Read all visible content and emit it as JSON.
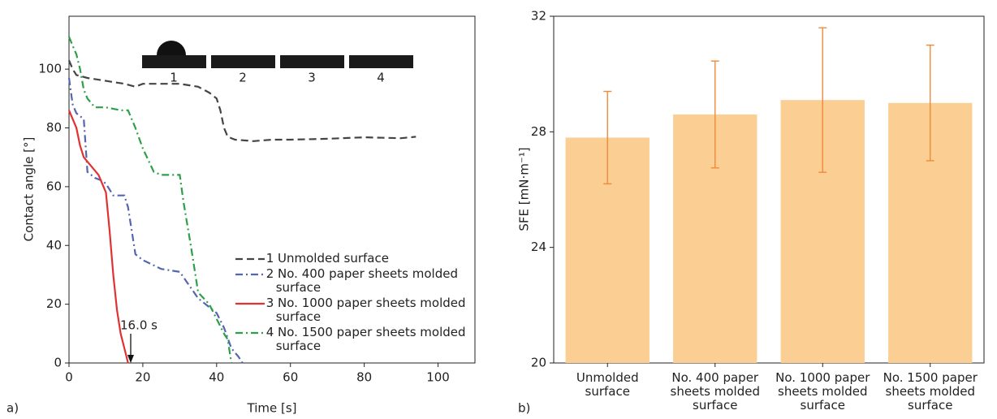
{
  "chart_data": [
    {
      "type": "line",
      "panel_label": "a)",
      "x_label": "Time [s]",
      "y_label": "Contact angle [°]",
      "xlim": [
        0,
        110
      ],
      "xticks": [
        0,
        20,
        40,
        60,
        80,
        100
      ],
      "ylim": [
        0,
        118
      ],
      "yticks": [
        0,
        20,
        40,
        60,
        80,
        100
      ],
      "legend": "lower right",
      "inset_labels": [
        "1",
        "2",
        "3",
        "4"
      ],
      "annotation": "16.0 s",
      "series": [
        {
          "name": "1 Unmolded surface",
          "color": "#444444",
          "dash": "dashed",
          "x": [
            0,
            1,
            2,
            5,
            10,
            15,
            18,
            20,
            25,
            30,
            35,
            38,
            40,
            41,
            42,
            43,
            45,
            50,
            55,
            60,
            70,
            80,
            90,
            94
          ],
          "values": [
            103,
            100,
            98,
            97,
            96,
            95,
            94,
            95,
            95,
            95,
            94,
            92,
            90,
            86,
            80,
            77,
            76,
            75.5,
            76,
            76,
            76.3,
            76.8,
            76.5,
            77
          ]
        },
        {
          "name": "2 No. 400 paper sheets molded surface",
          "color": "#5566b0",
          "dash": "dashdot",
          "x": [
            0,
            1,
            2,
            3,
            4,
            5,
            7,
            9,
            10,
            12,
            15,
            16,
            18,
            20,
            25,
            30,
            35,
            40,
            42,
            44,
            46,
            47
          ],
          "values": [
            97,
            88,
            85,
            84,
            83,
            65,
            63,
            62,
            61,
            57,
            57,
            53,
            37,
            35,
            32,
            31,
            22,
            17,
            12,
            5,
            2,
            0
          ]
        },
        {
          "name": "3 No. 1000 paper sheets molded surface",
          "color": "#e03232",
          "dash": "solid",
          "x": [
            0,
            2,
            3,
            4,
            6,
            8,
            10,
            11,
            12,
            13,
            14,
            15,
            16
          ],
          "values": [
            86,
            80,
            74,
            70,
            67,
            64,
            58,
            45,
            30,
            18,
            10,
            5,
            0
          ]
        },
        {
          "name": "4 No. 1500 paper sheets molded surface",
          "color": "#2ca048",
          "dash": "dashdot",
          "x": [
            0,
            1,
            2,
            3,
            4,
            5,
            7,
            10,
            14,
            16,
            18,
            20,
            23,
            25,
            30,
            31,
            33,
            35,
            38,
            40,
            42,
            43,
            44
          ],
          "values": [
            111,
            108,
            105,
            100,
            93,
            90,
            87,
            87,
            86,
            86,
            80,
            73,
            65,
            64,
            64,
            55,
            40,
            24,
            20,
            15,
            10,
            8,
            0
          ]
        }
      ]
    },
    {
      "type": "bar",
      "panel_label": "b)",
      "y_label": "SFE [mN·m⁻¹]",
      "categories": [
        "Unmolded surface",
        "No. 400 paper sheets molded surface",
        "No. 1000 paper sheets molded surface",
        "No. 1500 paper sheets molded surface"
      ],
      "values": [
        27.8,
        28.6,
        29.1,
        29.0
      ],
      "errors": [
        1.6,
        1.85,
        2.5,
        2.0
      ],
      "color": "#fbcf94",
      "error_color": "#f08a3a",
      "ylim": [
        20,
        32
      ],
      "yticks": [
        20,
        24,
        28,
        32
      ]
    }
  ]
}
